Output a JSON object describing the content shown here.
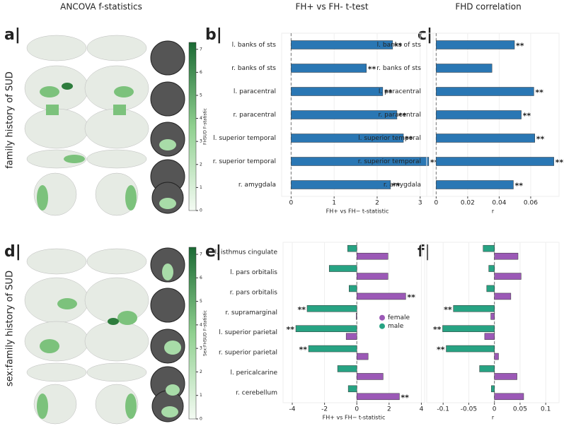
{
  "headers": [
    "ANCOVA f-statistics",
    "FH+ vs FH- t-test",
    "FHD correlation"
  ],
  "row_labels": [
    "family history of SUD",
    "sex:family history of SUD"
  ],
  "panel_labels": [
    "a|",
    "b|",
    "c|",
    "d|",
    "e|",
    "f|"
  ],
  "colorbars": [
    {
      "label": "FHSUD F-statistic",
      "lim": [
        0,
        7.3
      ],
      "ticks": [
        0,
        1,
        2,
        3,
        4,
        5,
        6,
        7
      ]
    },
    {
      "label": "Sex:FHSUD F-statistic",
      "lim": [
        0,
        7.3
      ],
      "ticks": [
        0,
        1,
        2,
        3,
        4,
        5,
        6,
        7
      ]
    }
  ],
  "chart_data": [
    {
      "type": "bar",
      "orientation": "horizontal",
      "xlabel": "FH+ vs FH− t-statistic",
      "categories": [
        "l. banks of sts",
        "r. banks of sts",
        "l. paracentral",
        "r. paracentral",
        "l. superior temporal",
        "r. superior temporal",
        "r. amygdala"
      ],
      "series": [
        {
          "color": "#2a77b4",
          "values": [
            2.36,
            1.75,
            2.13,
            2.46,
            2.61,
            3.2,
            2.31
          ],
          "markers": [
            "**",
            "**",
            "**",
            "**",
            "**",
            "**",
            "**"
          ]
        }
      ],
      "xlim": [
        -0.22,
        3.3
      ],
      "xticks": [
        0,
        1,
        2,
        3
      ],
      "grid": true
    },
    {
      "type": "bar",
      "orientation": "horizontal",
      "xlabel": "r",
      "categories": [
        "l. banks of sts",
        "r. banks of sts",
        "l. paracentral",
        "r. paracentral",
        "l. superior temporal",
        "r. superior temporal",
        "r. amygdala"
      ],
      "series": [
        {
          "color": "#2a77b4",
          "values": [
            0.0497,
            0.0354,
            0.062,
            0.054,
            0.0626,
            0.0747,
            0.049
          ],
          "markers": [
            "**",
            null,
            "**",
            "**",
            "**",
            "**",
            "**"
          ]
        }
      ],
      "xlim": [
        -0.006,
        0.078
      ],
      "xticks": [
        0,
        0.02,
        0.04,
        0.06
      ],
      "grid": true
    },
    {
      "type": "bar",
      "orientation": "horizontal",
      "xlabel": "FH+ vs FH− t-statistic",
      "legend": "right",
      "categories": [
        "l. isthmus cingulate",
        "l. pars orbitalis",
        "r. pars orbitalis",
        "r. supramarginal",
        "l. superior parietal",
        "r. superior parietal",
        "l. pericalcarine",
        "r. cerebellum"
      ],
      "series": [
        {
          "name": "female",
          "color": "#9b59b6",
          "values": [
            1.93,
            1.93,
            3.03,
            -0.04,
            -0.66,
            0.7,
            1.63,
            2.64
          ],
          "markers": [
            null,
            null,
            "**",
            null,
            null,
            null,
            null,
            "**"
          ]
        },
        {
          "name": "male",
          "color": "#27a383",
          "values": [
            -0.57,
            -1.71,
            -0.48,
            -3.08,
            -3.78,
            -2.99,
            -1.19,
            -0.53
          ],
          "markers": [
            null,
            null,
            null,
            "**",
            "**",
            "**",
            null,
            null
          ]
        }
      ],
      "xlim": [
        -4.57,
        4.2
      ],
      "xticks": [
        -4,
        -2,
        0,
        2,
        4
      ],
      "grid": true
    },
    {
      "type": "bar",
      "orientation": "horizontal",
      "xlabel": "r",
      "categories": [
        "l. isthmus cingulate",
        "l. pars orbitalis",
        "r. pars orbitalis",
        "r. supramarginal",
        "l. superior parietal",
        "r. superior parietal",
        "l. pericalcarine",
        "r. cerebellum"
      ],
      "category_labels": false,
      "series": [
        {
          "color": "#9b59b6",
          "values": [
            0.046,
            0.052,
            0.032,
            -0.007,
            -0.019,
            0.008,
            0.044,
            0.057
          ],
          "markers": [
            null,
            null,
            null,
            null,
            null,
            null,
            null,
            null
          ]
        },
        {
          "color": "#27a383",
          "values": [
            -0.022,
            -0.011,
            -0.015,
            -0.08,
            -0.101,
            -0.094,
            -0.029,
            -0.006
          ],
          "markers": [
            null,
            null,
            null,
            "**",
            "**",
            "**",
            null,
            null
          ]
        }
      ],
      "xlim": [
        -0.132,
        0.126
      ],
      "xticks": [
        -0.1,
        -0.05,
        0,
        0.05,
        0.1
      ],
      "grid": true
    }
  ]
}
